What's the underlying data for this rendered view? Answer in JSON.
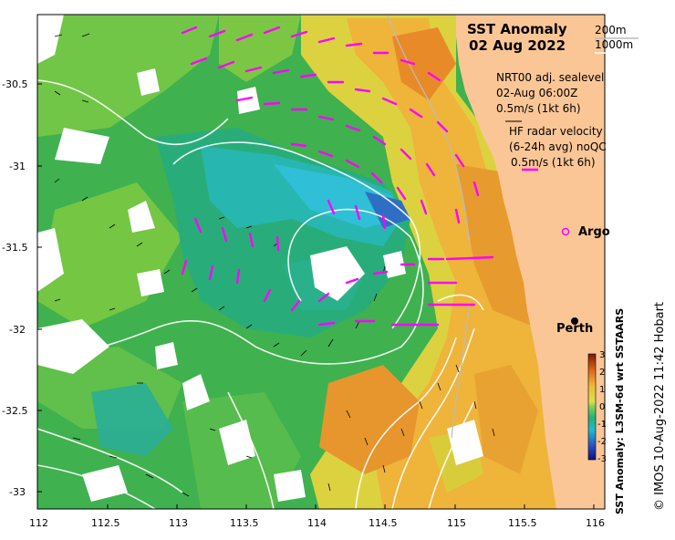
{
  "map": {
    "title": "SST Anomaly",
    "date": "02 Aug 2022",
    "isobaths": [
      "200m",
      "1000m"
    ],
    "sealevel": {
      "name": "NRT00 adj. sealevel",
      "time": "02-Aug 06:00Z",
      "scale": "0.5m/s (1kt 6h)"
    },
    "radar": {
      "name": "HF radar velocity",
      "avg": "(6-24h avg) noQC",
      "scale": "0.5m/s (1kt 6h)"
    },
    "argo_label": "Argo",
    "perth_label": "Perth",
    "credit": "© IMOS 10-Aug-2022 11:42 Hobart",
    "colorbar": {
      "label": "SST Anomaly: L3SM-6d wrt SSTAARS",
      "ticks": [
        "3",
        "2",
        "1",
        "0",
        "-1",
        "-2",
        "-3"
      ]
    },
    "lat_ticks": [
      "-30.5",
      "-31",
      "-31.5",
      "-32",
      "-32.5",
      "-33"
    ],
    "lon_ticks": [
      "112",
      "112.5",
      "113",
      "113.5",
      "114",
      "114.5",
      "115",
      "115.5",
      "116"
    ],
    "colors": {
      "land": "#fbc696",
      "radar_arrow": "#ff00ff",
      "warm": "#e8b43c",
      "cool": "#2fb86b",
      "cold": "#3fc0d8"
    }
  }
}
